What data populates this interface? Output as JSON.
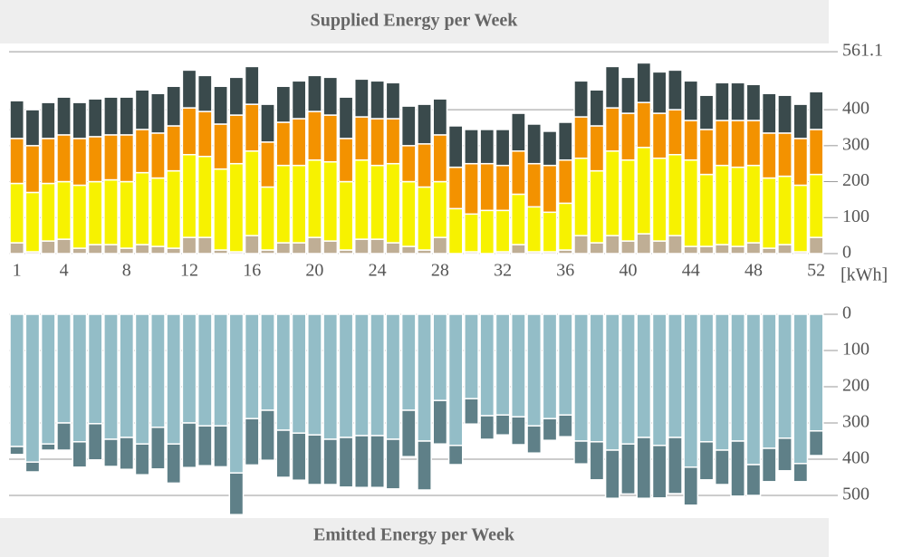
{
  "chart_data": [
    {
      "type": "stacked-bar",
      "title": "Supplied Energy per Week",
      "unit_label": "[kWh]",
      "x": [
        1,
        2,
        3,
        4,
        5,
        6,
        7,
        8,
        9,
        10,
        11,
        12,
        13,
        14,
        15,
        16,
        17,
        18,
        19,
        20,
        21,
        22,
        23,
        24,
        25,
        26,
        27,
        28,
        29,
        30,
        31,
        32,
        33,
        34,
        35,
        36,
        37,
        38,
        39,
        40,
        41,
        42,
        43,
        44,
        45,
        46,
        47,
        48,
        49,
        50,
        51,
        52
      ],
      "xlim": [
        0.5,
        52.8
      ],
      "xticks": [
        1,
        4,
        8,
        12,
        16,
        20,
        24,
        28,
        32,
        36,
        40,
        44,
        48,
        52
      ],
      "ylim": [
        0,
        584
      ],
      "yticks": [
        0,
        100,
        200,
        300,
        400,
        561.1
      ],
      "grid": true,
      "series": [
        {
          "color": "#bfae95",
          "values": [
            30,
            5,
            35,
            40,
            15,
            25,
            25,
            15,
            25,
            20,
            15,
            45,
            45,
            10,
            5,
            50,
            10,
            30,
            30,
            45,
            35,
            10,
            40,
            40,
            30,
            20,
            10,
            45,
            0,
            5,
            0,
            5,
            25,
            5,
            5,
            10,
            50,
            30,
            50,
            35,
            55,
            35,
            50,
            20,
            20,
            25,
            20,
            30,
            15,
            25,
            5,
            45
          ]
        },
        {
          "color": "#f7f200",
          "values": [
            165,
            165,
            160,
            160,
            175,
            175,
            180,
            185,
            200,
            190,
            215,
            230,
            225,
            225,
            245,
            235,
            175,
            215,
            215,
            215,
            220,
            190,
            220,
            205,
            220,
            180,
            175,
            155,
            125,
            105,
            120,
            115,
            140,
            125,
            110,
            130,
            215,
            200,
            235,
            225,
            240,
            230,
            225,
            240,
            200,
            220,
            220,
            215,
            195,
            190,
            185,
            175
          ]
        },
        {
          "color": "#f39200",
          "values": [
            125,
            130,
            125,
            130,
            130,
            125,
            125,
            130,
            120,
            125,
            125,
            130,
            125,
            125,
            135,
            130,
            125,
            120,
            130,
            135,
            130,
            120,
            120,
            130,
            125,
            100,
            120,
            130,
            115,
            140,
            130,
            125,
            120,
            120,
            130,
            120,
            115,
            125,
            120,
            130,
            125,
            125,
            125,
            110,
            125,
            125,
            130,
            125,
            125,
            120,
            130,
            125
          ]
        },
        {
          "color": "#3a4a4c",
          "values": [
            105,
            100,
            100,
            105,
            100,
            105,
            105,
            105,
            110,
            110,
            110,
            105,
            100,
            105,
            105,
            105,
            105,
            100,
            105,
            100,
            105,
            115,
            105,
            105,
            100,
            110,
            110,
            100,
            115,
            95,
            95,
            100,
            105,
            110,
            95,
            105,
            100,
            100,
            115,
            100,
            110,
            115,
            110,
            110,
            95,
            105,
            105,
            100,
            110,
            105,
            95,
            105
          ]
        }
      ]
    },
    {
      "type": "stacked-bar-down",
      "title": "Emitted Energy per Week",
      "x": [
        1,
        2,
        3,
        4,
        5,
        6,
        7,
        8,
        9,
        10,
        11,
        12,
        13,
        14,
        15,
        16,
        17,
        18,
        19,
        20,
        21,
        22,
        23,
        24,
        25,
        26,
        27,
        28,
        29,
        30,
        31,
        32,
        33,
        34,
        35,
        36,
        37,
        38,
        39,
        40,
        41,
        42,
        43,
        44,
        45,
        46,
        47,
        48,
        49,
        50,
        51,
        52
      ],
      "xlim": [
        0.5,
        52.8
      ],
      "ylim": [
        0,
        560
      ],
      "yticks": [
        0,
        100,
        200,
        300,
        400,
        500
      ],
      "grid": true,
      "series": [
        {
          "color": "#93bdc7",
          "values": [
            365,
            408,
            358,
            300,
            352,
            302,
            345,
            340,
            358,
            312,
            358,
            300,
            308,
            308,
            438,
            288,
            265,
            320,
            328,
            333,
            345,
            340,
            335,
            335,
            345,
            265,
            350,
            238,
            362,
            233,
            280,
            278,
            283,
            308,
            288,
            278,
            350,
            352,
            375,
            358,
            340,
            362,
            340,
            422,
            352,
            375,
            350,
            415,
            370,
            342,
            412,
            322
          ]
        },
        {
          "color": "#5f8088",
          "values": [
            22,
            27,
            17,
            75,
            70,
            100,
            75,
            88,
            85,
            115,
            108,
            123,
            110,
            113,
            115,
            128,
            138,
            130,
            130,
            137,
            125,
            137,
            143,
            143,
            137,
            128,
            135,
            120,
            53,
            70,
            65,
            55,
            77,
            75,
            60,
            60,
            63,
            105,
            133,
            138,
            168,
            145,
            155,
            105,
            105,
            95,
            152,
            85,
            92,
            90,
            50,
            68
          ]
        }
      ]
    }
  ]
}
